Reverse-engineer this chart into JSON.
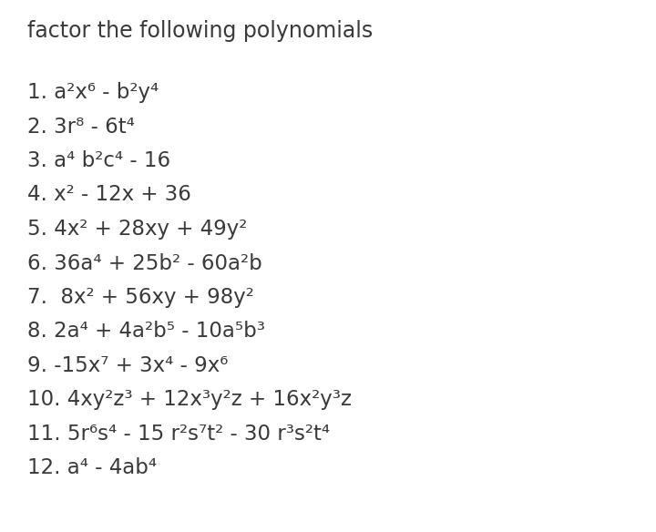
{
  "title": "factor the following polynomials",
  "background_color": "#ffffff",
  "text_color": "#3a3a3a",
  "title_fontsize": 17,
  "item_fontsize": 16.5,
  "lines": [
    "1. a²x⁶ - b²y⁴",
    "2. 3r⁸ - 6t⁴",
    "3. a⁴ b²c⁴ - 16",
    "4. x² - 12x + 36",
    "5. 4x² + 28xy + 49y²",
    "6. 36a⁴ + 25b² - 60a²b",
    "7.  8x² + 56xy + 98y²",
    "8. 2a⁴ + 4a²b⁵ - 10a⁵b³",
    "9. -15x⁷ + 3x⁴ - 9x⁶",
    "10. 4xy²z³ + 12x³y²z + 16x²y³z",
    "11. 5r⁶s⁴ - 15 r²s⁷t² - 30 r³s²t⁴",
    "12. a⁴ - 4ab⁴"
  ]
}
